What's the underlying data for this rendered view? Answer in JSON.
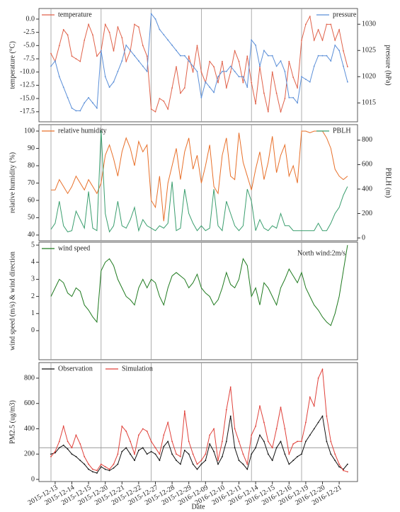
{
  "chart_data": [
    {
      "type": "line",
      "ylabel": "temperature (°C)",
      "y2label": "pressure (hPa)",
      "ylim": [
        -19.4,
        2.0
      ],
      "yticks": [
        {
          "value": -17.5,
          "label": "-17.5"
        },
        {
          "value": -15,
          "label": "-15.0"
        },
        {
          "value": -12.5,
          "label": "-12.5"
        },
        {
          "value": -10,
          "label": "-10.0"
        },
        {
          "value": -7.5,
          "label": "-7.5"
        },
        {
          "value": -5,
          "label": "-5.0"
        },
        {
          "value": -2.5,
          "label": "-2.5"
        },
        {
          "value": 0,
          "label": "0.0"
        }
      ],
      "y2lim": [
        1011.4,
        1033
      ],
      "y2ticks": [
        1015,
        1020,
        1025,
        1030
      ],
      "series": [
        {
          "name": "temperature",
          "color": "#e0624a",
          "values": [
            -6.5,
            -8,
            -5,
            -2,
            -3,
            -7,
            -7.5,
            -8,
            -4,
            -1,
            -3,
            -7,
            -6,
            -1,
            -2.5,
            -6,
            -1.5,
            -3.5,
            -8,
            -6,
            -1,
            -1.5,
            -5,
            -7,
            -17,
            -17.5,
            -15,
            -15.5,
            -17,
            -13,
            -9,
            -14,
            -13,
            -7,
            -10,
            -5,
            -10,
            -12,
            -8,
            -9,
            -12,
            -8,
            -13,
            -10,
            -6,
            -8,
            -12,
            -7,
            -12,
            -16,
            -9,
            -14,
            -17.5,
            -10,
            -14,
            -17.5,
            -15,
            -8,
            -11,
            -13,
            -4,
            -1,
            0.5,
            -4,
            -2,
            -4,
            -1,
            -1,
            -4,
            -2,
            -6,
            -9
          ]
        },
        {
          "name": "pressure",
          "color": "#5b8fd8",
          "axis": "y2",
          "values": [
            1022,
            1023,
            1020,
            1018,
            1016,
            1014,
            1013.5,
            1013.5,
            1015,
            1016,
            1015,
            1014,
            1025,
            1020,
            1018,
            1019,
            1021,
            1023,
            1026,
            1025,
            1024,
            1023,
            1022,
            1021,
            1032,
            1031,
            1029,
            1028,
            1027,
            1026,
            1025,
            1024,
            1024,
            1023,
            1022,
            1021,
            1016,
            1019,
            1018,
            1017,
            1020,
            1021,
            1021,
            1022,
            1021,
            1020,
            1020,
            1018,
            1027,
            1026,
            1022,
            1025,
            1024,
            1024,
            1022,
            1023,
            1021,
            1016,
            1016,
            1015,
            1020,
            1019.5,
            1019,
            1022,
            1024,
            1024,
            1024,
            1023,
            1026,
            1025,
            1022,
            1019
          ]
        }
      ]
    },
    {
      "type": "line",
      "ylabel": "relative humidity (%)",
      "y2label": "PBLH (m)",
      "ylim": [
        36.7,
        103.7
      ],
      "yticks": [
        40,
        50,
        60,
        70,
        80,
        90,
        100
      ],
      "y2lim": [
        -23,
        927
      ],
      "y2ticks": [
        0,
        200,
        400,
        600,
        800
      ],
      "series": [
        {
          "name": "relative humidity",
          "color": "#e8702a",
          "values": [
            66,
            66,
            72,
            68,
            64,
            68,
            74,
            70,
            66,
            72,
            68,
            64,
            70,
            86,
            92,
            84,
            74,
            88,
            96,
            90,
            80,
            94,
            88,
            92,
            60,
            56,
            74,
            48,
            70,
            80,
            90,
            72,
            88,
            96,
            78,
            86,
            70,
            80,
            92,
            68,
            64,
            86,
            96,
            74,
            72,
            99,
            82,
            74,
            66,
            78,
            88,
            72,
            82,
            97,
            76,
            86,
            92,
            74,
            80,
            70,
            100,
            100,
            99,
            100,
            100,
            100,
            96,
            90,
            78,
            74,
            72,
            74
          ]
        },
        {
          "name": "PBLH",
          "color": "#3a9e6e",
          "axis": "y2",
          "values": [
            70,
            120,
            300,
            100,
            50,
            60,
            220,
            150,
            80,
            380,
            80,
            60,
            880,
            200,
            50,
            100,
            300,
            100,
            80,
            150,
            250,
            60,
            150,
            100,
            80,
            60,
            100,
            80,
            120,
            460,
            60,
            80,
            400,
            200,
            120,
            60,
            100,
            60,
            80,
            400,
            100,
            60,
            300,
            200,
            100,
            60,
            100,
            400,
            300,
            60,
            150,
            80,
            60,
            100,
            80,
            200,
            100,
            100,
            60,
            60,
            60,
            60,
            60,
            60,
            120,
            60,
            60,
            120,
            200,
            250,
            350,
            420
          ]
        }
      ]
    },
    {
      "type": "line",
      "ylabel": "wind speed (m/s) & wind direction",
      "annotation": "North wind:2m/s",
      "ylim": [
        -1.7,
        5.17
      ],
      "yticks": [
        0,
        1,
        2,
        3,
        4,
        5
      ],
      "series": [
        {
          "name": "wind speed",
          "color": "#1f7a1f",
          "values": [
            2,
            2.5,
            3,
            2.8,
            2.2,
            2,
            2.5,
            2.3,
            1.5,
            1.2,
            0.8,
            0.5,
            3.5,
            4,
            4.2,
            3.8,
            3,
            2.5,
            2,
            1.8,
            1.5,
            2.5,
            3,
            2.5,
            3,
            2.8,
            2,
            1.5,
            2.5,
            3.2,
            3.4,
            3.2,
            3,
            2.5,
            2.8,
            3.3,
            2.5,
            2.2,
            2,
            1.5,
            1.8,
            2.5,
            3.4,
            2.7,
            2.5,
            3,
            4.2,
            3.8,
            2,
            2.5,
            1.5,
            2.8,
            2.5,
            2,
            1.5,
            2.5,
            3,
            3.6,
            3.2,
            2.8,
            3.4,
            2.5,
            2,
            1.5,
            1.2,
            0.8,
            0.5,
            0.3,
            1,
            2,
            3.5,
            5
          ]
        }
      ]
    },
    {
      "type": "line",
      "ylabel": "PM2.5 (ug/m3)",
      "xlabel": "Date",
      "reference_line": 250,
      "ylim": [
        -17,
        923
      ],
      "yticks": [
        0,
        200,
        400,
        600,
        800
      ],
      "categories": [
        null,
        "2015-12-13",
        null,
        null,
        null,
        "2015-12-14",
        null,
        null,
        null,
        "2015-12-15",
        null,
        null,
        null,
        "2015-12-20",
        null,
        null,
        null,
        "2015-12-21",
        null,
        null,
        null,
        "2015-12-22",
        null,
        null,
        null,
        "2015-12-27",
        null,
        null,
        null,
        "2015-12-28",
        null,
        null,
        null,
        "2015-12-29",
        null,
        null,
        null,
        "2016-12-09",
        null,
        null,
        null,
        "2016-12-10",
        null,
        null,
        null,
        "2016-12-11",
        null,
        null,
        null,
        "2016-12-14",
        null,
        null,
        null,
        "2016-12-15",
        null,
        null,
        null,
        "2016-12-16",
        null,
        null,
        null,
        "2016-12-19",
        null,
        null,
        null,
        "2016-12-20",
        null,
        null,
        null,
        "2016-12-21",
        null,
        null
      ],
      "series": [
        {
          "name": "Observation",
          "color": "#111111",
          "values": [
            200,
            210,
            250,
            270,
            240,
            200,
            180,
            150,
            120,
            80,
            60,
            50,
            100,
            80,
            70,
            90,
            120,
            220,
            250,
            200,
            150,
            230,
            250,
            200,
            220,
            200,
            150,
            260,
            300,
            200,
            150,
            120,
            230,
            200,
            120,
            80,
            120,
            150,
            280,
            220,
            120,
            180,
            300,
            500,
            250,
            150,
            120,
            80,
            200,
            250,
            350,
            300,
            200,
            150,
            250,
            300,
            200,
            120,
            150,
            180,
            200,
            300,
            350,
            400,
            450,
            500,
            300,
            200,
            150,
            100,
            80,
            120
          ]
        },
        {
          "name": "Simulation",
          "color": "#e0413a",
          "values": [
            180,
            220,
            300,
            420,
            300,
            250,
            350,
            280,
            180,
            120,
            80,
            70,
            120,
            100,
            80,
            120,
            200,
            420,
            380,
            300,
            200,
            350,
            400,
            380,
            300,
            250,
            200,
            350,
            450,
            300,
            200,
            180,
            540,
            300,
            200,
            120,
            150,
            200,
            350,
            400,
            150,
            300,
            550,
            730,
            400,
            300,
            200,
            120,
            350,
            420,
            580,
            450,
            300,
            250,
            400,
            570,
            400,
            200,
            280,
            300,
            300,
            450,
            650,
            580,
            800,
            870,
            500,
            300,
            200,
            120,
            70,
            60
          ]
        }
      ]
    }
  ]
}
